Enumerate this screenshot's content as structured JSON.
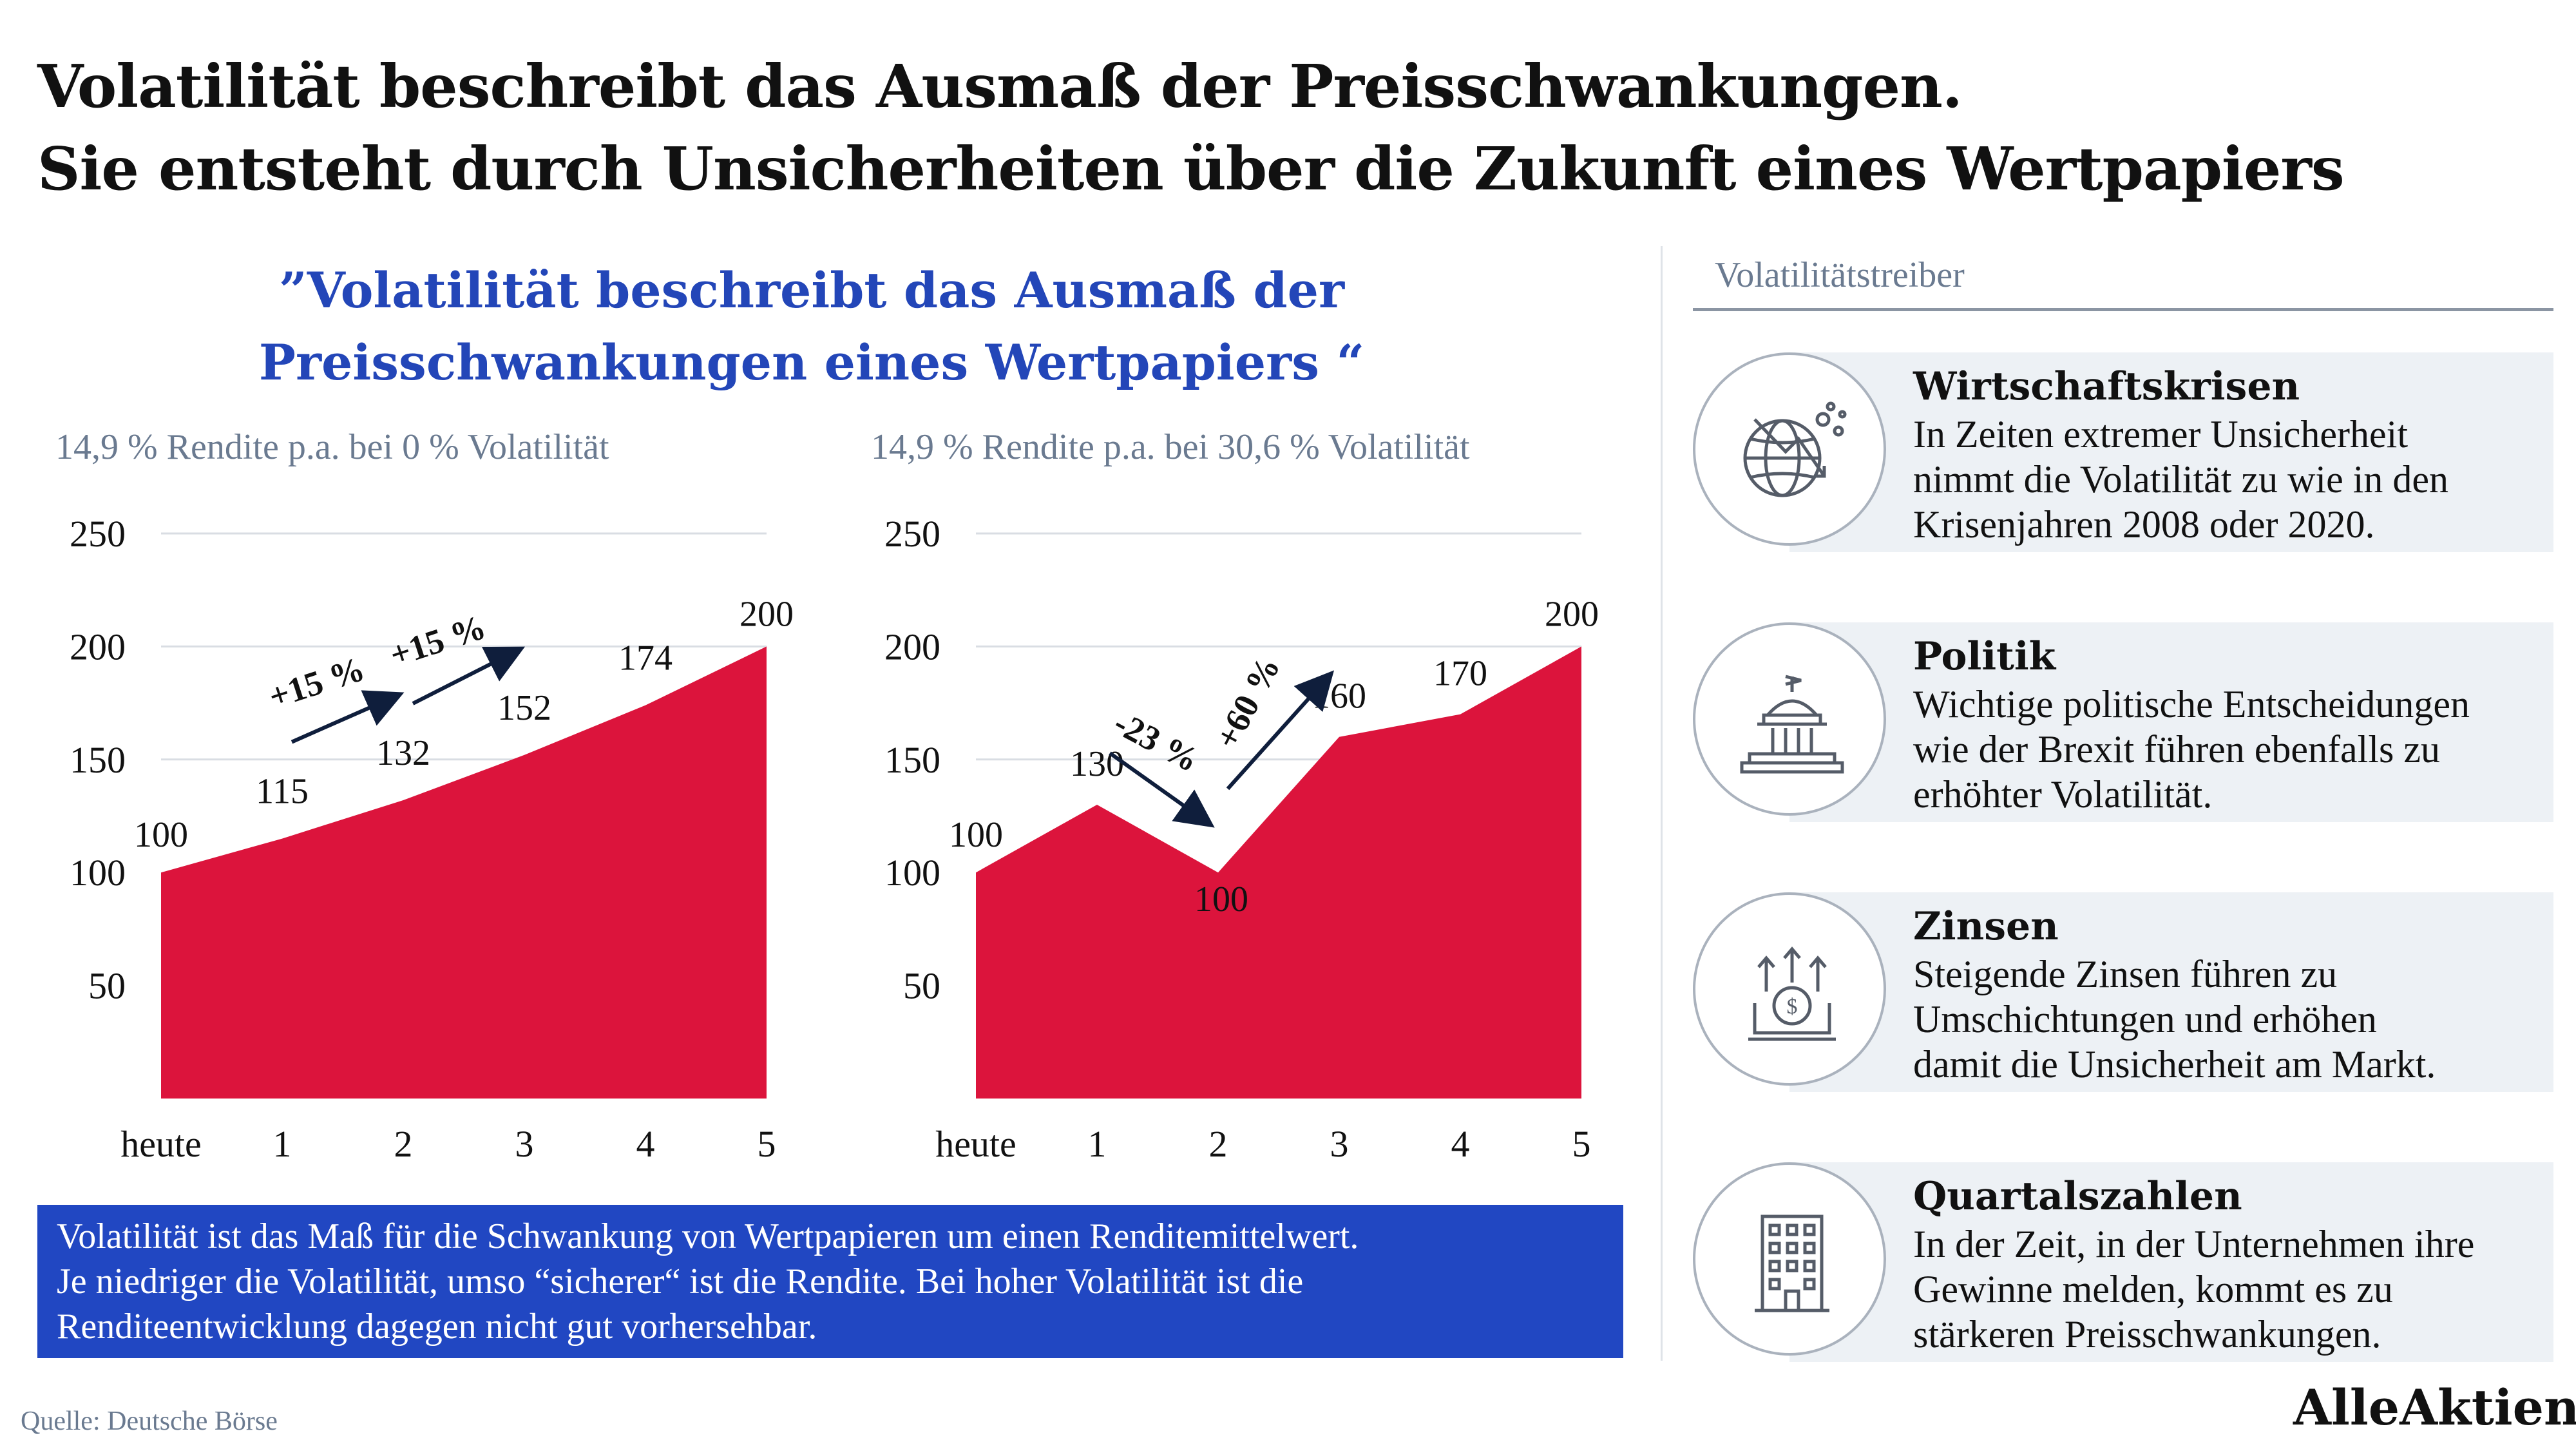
{
  "headline": {
    "line1": "Volatilität beschreibt das Ausmaß der Preisschwankungen.",
    "line2": "Sie entsteht durch Unsicherheiten über die Zukunft eines Wertpapiers"
  },
  "quote": {
    "line1": "”Volatilität beschreibt das Ausmaß der",
    "line2": "Preisschwankungen eines Wertpapiers “"
  },
  "chart_data": [
    {
      "type": "area",
      "subtitle": "14,9 % Rendite p.a. bei 0 % Volatilität",
      "categories": [
        "heute",
        "1",
        "2",
        "3",
        "4",
        "5"
      ],
      "values": [
        100,
        115,
        132,
        152,
        174,
        200
      ],
      "value_labels": [
        "100",
        "115",
        "132",
        "152",
        "174",
        "200"
      ],
      "yticks": [
        50,
        100,
        150,
        200,
        250
      ],
      "ylim": [
        0,
        250
      ],
      "color": "#dc143c",
      "annotations": [
        {
          "label": "+15 %",
          "from": 1,
          "to": 2
        },
        {
          "label": "+15 %",
          "from": 2,
          "to": 3
        }
      ]
    },
    {
      "type": "area",
      "subtitle": "14,9 % Rendite p.a. bei 30,6 % Volatilität",
      "categories": [
        "heute",
        "1",
        "2",
        "3",
        "4",
        "5"
      ],
      "values": [
        100,
        130,
        100,
        160,
        170,
        200
      ],
      "value_labels": [
        "100",
        "130",
        "100",
        "160",
        "170",
        "200"
      ],
      "yticks": [
        50,
        100,
        150,
        200,
        250
      ],
      "ylim": [
        0,
        250
      ],
      "color": "#dc143c",
      "annotations": [
        {
          "label": "-23 %",
          "from": 1,
          "to": 2
        },
        {
          "label": "+60 %",
          "from": 2,
          "to": 3
        }
      ]
    }
  ],
  "infobox": {
    "line1": "Volatilität ist das Maß für die Schwankung von Wertpapieren um einen Renditemittelwert.",
    "line2": "Je niedriger die Volatilität, umso “sicherer“ ist die Rendite. Bei hoher Volatilität ist die",
    "line3": "Renditeentwicklung dagegen nicht gut vorhersehbar."
  },
  "drivers": {
    "title": "Volatilitätstreiber",
    "items": [
      {
        "title": "Wirtschaftskrisen",
        "icon": "globe-crash-icon",
        "lines": [
          "In Zeiten extremer Unsicherheit",
          "nimmt die Volatilität zu wie in den",
          "Krisenjahren 2008 oder 2020."
        ]
      },
      {
        "title": "Politik",
        "icon": "parliament-icon",
        "lines": [
          "Wichtige politische Entscheidungen",
          "wie der Brexit führen ebenfalls zu",
          "erhöhter Volatilität."
        ]
      },
      {
        "title": "Zinsen",
        "icon": "interest-rate-icon",
        "lines": [
          "Steigende Zinsen führen zu",
          "Umschichtungen und erhöhen",
          "damit die Unsicherheit am Markt."
        ]
      },
      {
        "title": "Quartalszahlen",
        "icon": "office-building-icon",
        "lines": [
          "In der Zeit, in der Unternehmen ihre",
          "Gewinne melden, kommt es zu",
          "stärkeren Preisschwankungen."
        ]
      }
    ]
  },
  "source": "Quelle: Deutsche Börse",
  "brand": "AlleAktien"
}
